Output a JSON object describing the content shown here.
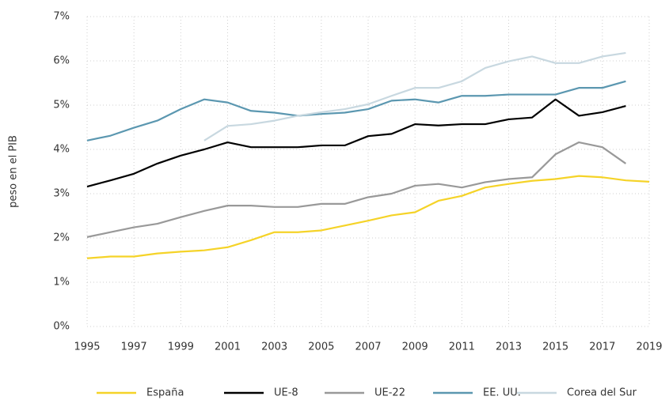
{
  "chart_data": {
    "type": "line",
    "y_label": "peso en el PIB",
    "x": [
      1995,
      1996,
      1997,
      1998,
      1999,
      2000,
      2001,
      2002,
      2003,
      2004,
      2005,
      2006,
      2007,
      2008,
      2009,
      2010,
      2011,
      2012,
      2013,
      2014,
      2015,
      2016,
      2017,
      2018,
      2019
    ],
    "series": [
      {
        "name": "España",
        "color": "#f5d328",
        "values": [
          1.54,
          1.58,
          1.58,
          1.65,
          1.69,
          1.72,
          1.79,
          1.95,
          2.13,
          2.13,
          2.17,
          2.28,
          2.39,
          2.51,
          2.58,
          2.84,
          2.95,
          3.14,
          3.22,
          3.29,
          3.33,
          3.4,
          3.37,
          3.3,
          3.27
        ]
      },
      {
        "name": "UE-8",
        "color": "#000000",
        "values": [
          3.16,
          3.3,
          3.45,
          3.68,
          3.86,
          4.0,
          4.16,
          4.05,
          4.05,
          4.05,
          4.09,
          4.09,
          4.3,
          4.35,
          4.57,
          4.54,
          4.57,
          4.57,
          4.68,
          4.72,
          5.13,
          4.76,
          4.84,
          4.98,
          null
        ]
      },
      {
        "name": "UE-22",
        "color": "#999999",
        "values": [
          2.02,
          2.13,
          2.24,
          2.32,
          2.47,
          2.61,
          2.73,
          2.73,
          2.7,
          2.7,
          2.77,
          2.77,
          2.92,
          3.0,
          3.18,
          3.22,
          3.14,
          3.26,
          3.33,
          3.37,
          3.89,
          4.16,
          4.05,
          3.68,
          null
        ]
      },
      {
        "name": "EE. UU.",
        "color": "#5b97b0",
        "values": [
          4.2,
          4.31,
          4.49,
          4.65,
          4.91,
          5.13,
          5.06,
          4.87,
          4.83,
          4.76,
          4.8,
          4.83,
          4.91,
          5.1,
          5.13,
          5.06,
          5.21,
          5.21,
          5.24,
          5.24,
          5.24,
          5.39,
          5.39,
          5.54,
          null
        ]
      },
      {
        "name": "Corea del Sur",
        "color": "#c8d8e0",
        "values": [
          null,
          null,
          null,
          null,
          null,
          4.2,
          4.53,
          4.57,
          4.65,
          4.76,
          4.84,
          4.91,
          5.02,
          5.21,
          5.39,
          5.39,
          5.54,
          5.84,
          5.99,
          6.1,
          5.95,
          5.95,
          6.1,
          6.18,
          null
        ]
      }
    ],
    "xlim": [
      1995,
      2019
    ],
    "xticks": [
      1995,
      1997,
      1999,
      2001,
      2003,
      2005,
      2007,
      2009,
      2011,
      2013,
      2015,
      2017,
      2019
    ],
    "ylim": [
      0,
      7
    ],
    "yticks": [
      {
        "value": 0,
        "label": "0%"
      },
      {
        "value": 1,
        "label": "1%"
      },
      {
        "value": 2,
        "label": "2%"
      },
      {
        "value": 3,
        "label": "3%"
      },
      {
        "value": 4,
        "label": "4%"
      },
      {
        "value": 5,
        "label": "5%"
      },
      {
        "value": 6,
        "label": "6%"
      },
      {
        "value": 7,
        "label": "7%"
      }
    ],
    "grid": true,
    "legend": "bottom"
  }
}
